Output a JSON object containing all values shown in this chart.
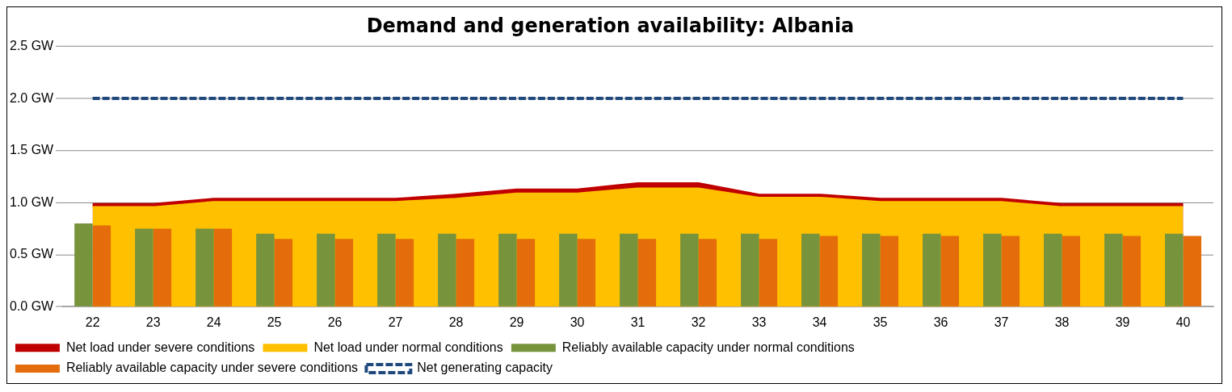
{
  "chart_data": {
    "type": "bar",
    "title": "Demand and generation availability: Albania",
    "categories": [
      "22",
      "23",
      "24",
      "25",
      "26",
      "27",
      "28",
      "29",
      "30",
      "31",
      "32",
      "33",
      "34",
      "35",
      "36",
      "37",
      "38",
      "39",
      "40"
    ],
    "series": [
      {
        "name": "Net load under severe conditions",
        "type": "area",
        "color": "#c00000",
        "values": [
          0.98,
          0.98,
          1.03,
          1.03,
          1.03,
          1.03,
          1.07,
          1.12,
          1.12,
          1.18,
          1.18,
          1.07,
          1.07,
          1.03,
          1.03,
          1.03,
          0.98,
          0.98,
          0.98
        ]
      },
      {
        "name": "Net load under normal conditions",
        "type": "area",
        "color": "#ffc000",
        "values": [
          0.95,
          0.95,
          1.0,
          1.0,
          1.0,
          1.0,
          1.03,
          1.08,
          1.08,
          1.13,
          1.13,
          1.04,
          1.04,
          1.0,
          1.0,
          1.0,
          0.95,
          0.95,
          0.95
        ]
      },
      {
        "name": "Reliably available capacity under normal conditions",
        "color": "#77933c",
        "values": [
          0.8,
          0.75,
          0.75,
          0.7,
          0.7,
          0.7,
          0.7,
          0.7,
          0.7,
          0.7,
          0.7,
          0.7,
          0.7,
          0.7,
          0.7,
          0.7,
          0.7,
          0.7,
          0.7
        ]
      },
      {
        "name": "Reliably available capacity under severe conditions",
        "color": "#e46c0a",
        "values": [
          0.78,
          0.75,
          0.75,
          0.65,
          0.65,
          0.65,
          0.65,
          0.65,
          0.65,
          0.65,
          0.65,
          0.65,
          0.68,
          0.68,
          0.68,
          0.68,
          0.68,
          0.68,
          0.68
        ]
      },
      {
        "name": "Net generating capacity",
        "type": "line",
        "color": "#1f497d",
        "line_style": "dashed",
        "marker": "none",
        "values": [
          2.0,
          2.0,
          2.0,
          2.0,
          2.0,
          2.0,
          2.0,
          2.0,
          2.0,
          2.0,
          2.0,
          2.0,
          2.0,
          2.0,
          2.0,
          2.0,
          2.0,
          2.0,
          2.0
        ]
      }
    ],
    "ylim": [
      0,
      2.5
    ],
    "yticks": [
      {
        "value": 0,
        "label": "0.0 GW"
      },
      {
        "value": 0.5,
        "label": "0.5 GW"
      },
      {
        "value": 1.0,
        "label": "1.0 GW"
      },
      {
        "value": 1.5,
        "label": "1.5 GW"
      },
      {
        "value": 2.0,
        "label": "2.0 GW"
      },
      {
        "value": 2.5,
        "label": "2.5 GW"
      }
    ],
    "grid": "y",
    "legend": "bottom"
  }
}
